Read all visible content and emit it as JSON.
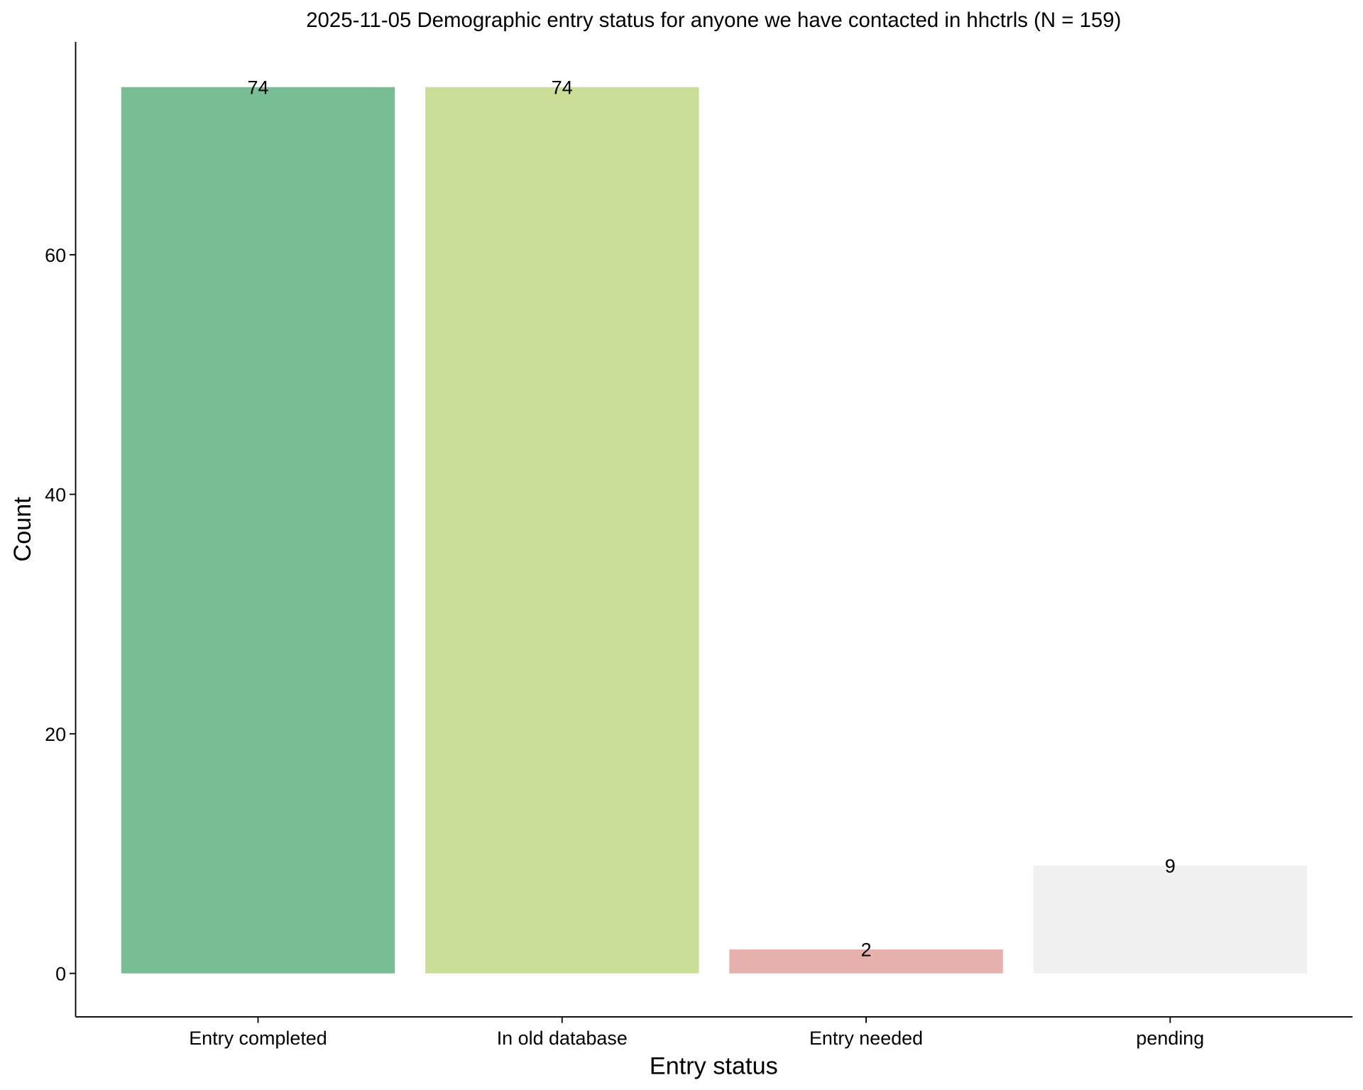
{
  "chart_data": {
    "type": "bar",
    "title": "2025-11-05 Demographic entry status for anyone we have contacted in hhctrls (N = 159)",
    "xlabel": "Entry status",
    "ylabel": "Count",
    "categories": [
      "Entry completed",
      "In old database",
      "Entry needed",
      "pending"
    ],
    "values": [
      74,
      74,
      2,
      9
    ],
    "data_labels": [
      "74",
      "74",
      "2",
      "9"
    ],
    "colors": [
      "#79BD95",
      "#CBDE98",
      "#E6B1AC",
      "#F0F0F0"
    ],
    "yticks": [
      0,
      20,
      40,
      60
    ],
    "ytick_labels": [
      "0",
      "20",
      "40",
      "60"
    ],
    "ylim": [
      -3.7,
      77.5
    ],
    "grid": false,
    "legend": "none"
  }
}
